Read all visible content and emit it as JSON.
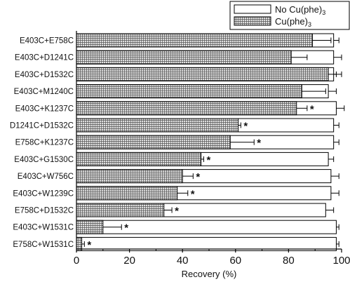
{
  "chart_data": {
    "type": "bar",
    "orientation": "horizontal",
    "categories": [
      "E403C+E758C",
      "E403C+D1241C",
      "E403C+D1532C",
      "E403C+M1240C",
      "E403C+K1237C",
      "D1241C+D1532C",
      "E758C+K1237C",
      "E403C+G1530C",
      "E403C+W756C",
      "E403C+W1239C",
      "E758C+D1532C",
      "E403C+W1531C",
      "E758C+W1531C"
    ],
    "series": [
      {
        "name": "No Cu(phe)3",
        "fill": "#ffffff",
        "values": [
          97,
          97,
          97,
          95,
          98,
          97,
          97,
          95,
          96,
          96,
          94,
          98,
          98
        ],
        "errors": [
          2,
          3,
          3,
          3,
          3,
          2,
          2,
          2,
          3,
          3,
          3,
          1,
          1
        ]
      },
      {
        "name": "Cu(phe)3",
        "fill": "#d0d0d0",
        "pattern": "crosshatch",
        "values": [
          89,
          81,
          95,
          85,
          83,
          61,
          58,
          47,
          40,
          38,
          33,
          10,
          2
        ],
        "errors": [
          7,
          6,
          3,
          9,
          4,
          1,
          9,
          1,
          4,
          4,
          3,
          7,
          1
        ]
      }
    ],
    "significance_marks": [
      "",
      "",
      "",
      "",
      "*",
      "*",
      "*",
      "*",
      "*",
      "*",
      "*",
      "*",
      "*"
    ],
    "xlabel": "Recovery (%)",
    "xlim": [
      0,
      100
    ],
    "xticks": [
      0,
      20,
      40,
      60,
      80,
      100
    ],
    "legend": {
      "placement": "top-right",
      "entries": [
        "No Cu(phe)",
        "Cu(phe)"
      ],
      "subscript": "3"
    },
    "grid": false
  }
}
